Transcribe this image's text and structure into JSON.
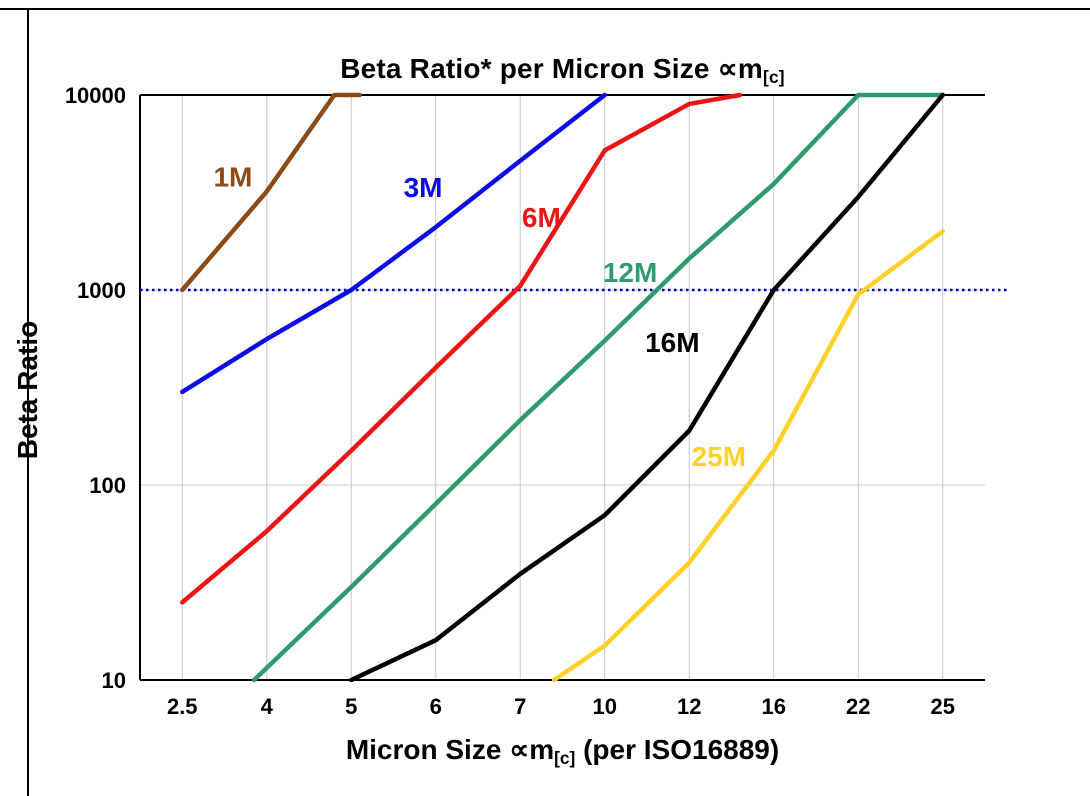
{
  "frame": {
    "bg": "#FFFFFF",
    "border_color": "#000000"
  },
  "title": {
    "pre": "Beta Ratio* per Micron Size ",
    "sym": "∝m",
    "sub": "[c]"
  },
  "y_axis": {
    "label": "Beta Ratio"
  },
  "x_axis": {
    "label_pre": "Micron Size ",
    "label_sym": "∝m",
    "label_sub": "[c]",
    "label_post": " (per ISO16889)"
  },
  "chart_data": {
    "type": "line",
    "title": "Beta Ratio* per Micron Size ∝m[c]",
    "xlabel": "Micron Size ∝m[c] (per ISO16889)",
    "ylabel": "Beta Ratio",
    "x_categories": [
      "2.5",
      "4",
      "5",
      "6",
      "7",
      "10",
      "12",
      "16",
      "22",
      "25"
    ],
    "y_scale": "log",
    "ylim": [
      10,
      10000
    ],
    "y_ticks": [
      10,
      100,
      1000,
      10000
    ],
    "grid": {
      "vertical": true,
      "horizontal": true,
      "color": "#C6C6C6"
    },
    "reference_line": {
      "value": 1000,
      "color": "#0000CC",
      "style": "dotted"
    },
    "legend_position": "inline-labels",
    "series": [
      {
        "name": "1M",
        "color": "#8C4A17",
        "label_pos": [
          0.6,
          3400
        ],
        "points": [
          [
            0,
            1000
          ],
          [
            1,
            3200
          ],
          [
            1.8,
            10000
          ],
          [
            2.1,
            10000
          ]
        ]
      },
      {
        "name": "3M",
        "color": "#0B0BE8",
        "label_pos": [
          2.85,
          3000
        ],
        "points": [
          [
            0,
            300
          ],
          [
            1,
            560
          ],
          [
            2,
            1000
          ],
          [
            3,
            2100
          ],
          [
            4,
            4600
          ],
          [
            5,
            10000
          ]
        ]
      },
      {
        "name": "6M",
        "color": "#EC1515",
        "label_pos": [
          4.25,
          2100
        ],
        "points": [
          [
            0,
            25
          ],
          [
            1,
            58
          ],
          [
            2,
            150
          ],
          [
            3,
            400
          ],
          [
            4,
            1050
          ],
          [
            5,
            5200
          ],
          [
            6,
            9000
          ],
          [
            6.6,
            10000
          ]
        ]
      },
      {
        "name": "12M",
        "color": "#2F9B6C",
        "label_pos": [
          5.3,
          1100
        ],
        "points": [
          [
            0.85,
            10
          ],
          [
            2,
            30
          ],
          [
            3,
            80
          ],
          [
            4,
            215
          ],
          [
            5,
            550
          ],
          [
            6,
            1450
          ],
          [
            7,
            3500
          ],
          [
            8,
            10000
          ],
          [
            9,
            10000
          ]
        ]
      },
      {
        "name": "16M",
        "color": "#000000",
        "label_pos": [
          5.8,
          480
        ],
        "points": [
          [
            2,
            10
          ],
          [
            3,
            16
          ],
          [
            4,
            35
          ],
          [
            5,
            70
          ],
          [
            6,
            190
          ],
          [
            7,
            1000
          ],
          [
            8,
            3000
          ],
          [
            9,
            10000
          ]
        ]
      },
      {
        "name": "25M",
        "color": "#FFD028",
        "label_pos": [
          6.35,
          125
        ],
        "points": [
          [
            4.4,
            10
          ],
          [
            5,
            15
          ],
          [
            6,
            40
          ],
          [
            7,
            150
          ],
          [
            8,
            950
          ],
          [
            9,
            2000
          ]
        ]
      }
    ]
  }
}
